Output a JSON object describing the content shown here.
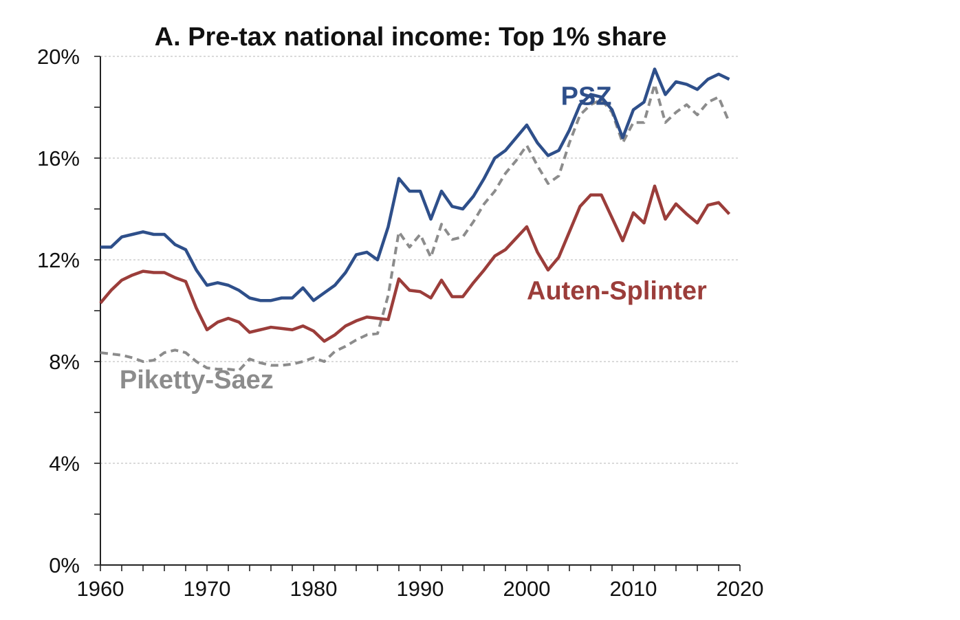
{
  "chart_data": {
    "type": "line",
    "title": "A. Pre-tax national income: Top 1% share",
    "xlabel": "",
    "ylabel": "",
    "xlim": [
      1960,
      2020
    ],
    "ylim": [
      0,
      20
    ],
    "x_ticks": [
      1960,
      1970,
      1980,
      1990,
      2000,
      2010,
      2020
    ],
    "x_tick_labels": [
      "1960",
      "1970",
      "1980",
      "1990",
      "2000",
      "2010",
      "2020"
    ],
    "y_ticks": [
      0,
      4,
      8,
      12,
      16,
      20
    ],
    "y_tick_labels": [
      "0%",
      "4%",
      "8%",
      "12%",
      "16%",
      "20%"
    ],
    "grid": "horizontal dashed",
    "x": [
      1960,
      1961,
      1962,
      1963,
      1964,
      1965,
      1966,
      1967,
      1968,
      1969,
      1970,
      1971,
      1972,
      1973,
      1974,
      1975,
      1976,
      1977,
      1978,
      1979,
      1980,
      1981,
      1982,
      1983,
      1984,
      1985,
      1986,
      1987,
      1988,
      1989,
      1990,
      1991,
      1992,
      1993,
      1994,
      1995,
      1996,
      1997,
      1998,
      1999,
      2000,
      2001,
      2002,
      2003,
      2004,
      2005,
      2006,
      2007,
      2008,
      2009,
      2010,
      2011,
      2012,
      2013,
      2014,
      2015,
      2016,
      2017,
      2018,
      2019
    ],
    "series": [
      {
        "name": "PSZ",
        "color": "#2e4f8a",
        "style": "solid",
        "values": [
          12.5,
          12.5,
          12.9,
          13.0,
          13.1,
          13.0,
          13.0,
          12.6,
          12.4,
          11.6,
          11.0,
          11.1,
          11.0,
          10.8,
          10.5,
          10.4,
          10.4,
          10.5,
          10.5,
          10.9,
          10.4,
          10.7,
          11.0,
          11.5,
          12.2,
          12.3,
          12.0,
          13.3,
          15.2,
          14.7,
          14.7,
          13.6,
          14.7,
          14.1,
          14.0,
          14.5,
          15.2,
          16.0,
          16.3,
          16.8,
          17.3,
          16.6,
          16.1,
          16.3,
          17.1,
          18.1,
          18.5,
          18.4,
          17.9,
          16.8,
          17.9,
          18.2,
          19.5,
          18.5,
          19.0,
          18.9,
          18.7,
          19.1,
          19.3,
          19.1
        ]
      },
      {
        "name": "Auten-Splinter",
        "color": "#9b3d3a",
        "style": "solid",
        "values": [
          10.3,
          10.8,
          11.2,
          11.4,
          11.55,
          11.5,
          11.5,
          11.3,
          11.15,
          10.1,
          9.25,
          9.55,
          9.7,
          9.55,
          9.15,
          9.25,
          9.35,
          9.3,
          9.25,
          9.4,
          9.2,
          8.8,
          9.05,
          9.4,
          9.6,
          9.75,
          9.7,
          9.65,
          11.25,
          10.8,
          10.75,
          10.5,
          11.2,
          10.55,
          10.55,
          11.1,
          11.6,
          12.15,
          12.4,
          12.85,
          13.3,
          12.3,
          11.6,
          12.1,
          13.1,
          14.1,
          14.55,
          14.55,
          13.65,
          12.75,
          13.85,
          13.45,
          14.9,
          13.6,
          14.2,
          13.8,
          13.45,
          14.15,
          14.25,
          13.8
        ]
      },
      {
        "name": "Piketty-Saez",
        "color": "#8c8c8c",
        "style": "dashed",
        "values": [
          8.35,
          8.3,
          8.25,
          8.15,
          8.0,
          8.05,
          8.35,
          8.45,
          8.35,
          8.0,
          7.75,
          7.7,
          7.7,
          7.65,
          8.1,
          7.95,
          7.85,
          7.85,
          7.9,
          8.0,
          8.15,
          8.0,
          8.4,
          8.6,
          8.85,
          9.05,
          9.1,
          10.6,
          13.1,
          12.5,
          13.0,
          12.1,
          13.4,
          12.8,
          12.9,
          13.5,
          14.2,
          14.7,
          15.4,
          15.9,
          16.5,
          15.7,
          15.0,
          15.3,
          16.6,
          17.7,
          18.1,
          18.3,
          17.8,
          16.6,
          17.4,
          17.4,
          18.9,
          17.4,
          17.8,
          18.1,
          17.7,
          18.2,
          18.4,
          17.4
        ]
      }
    ]
  }
}
